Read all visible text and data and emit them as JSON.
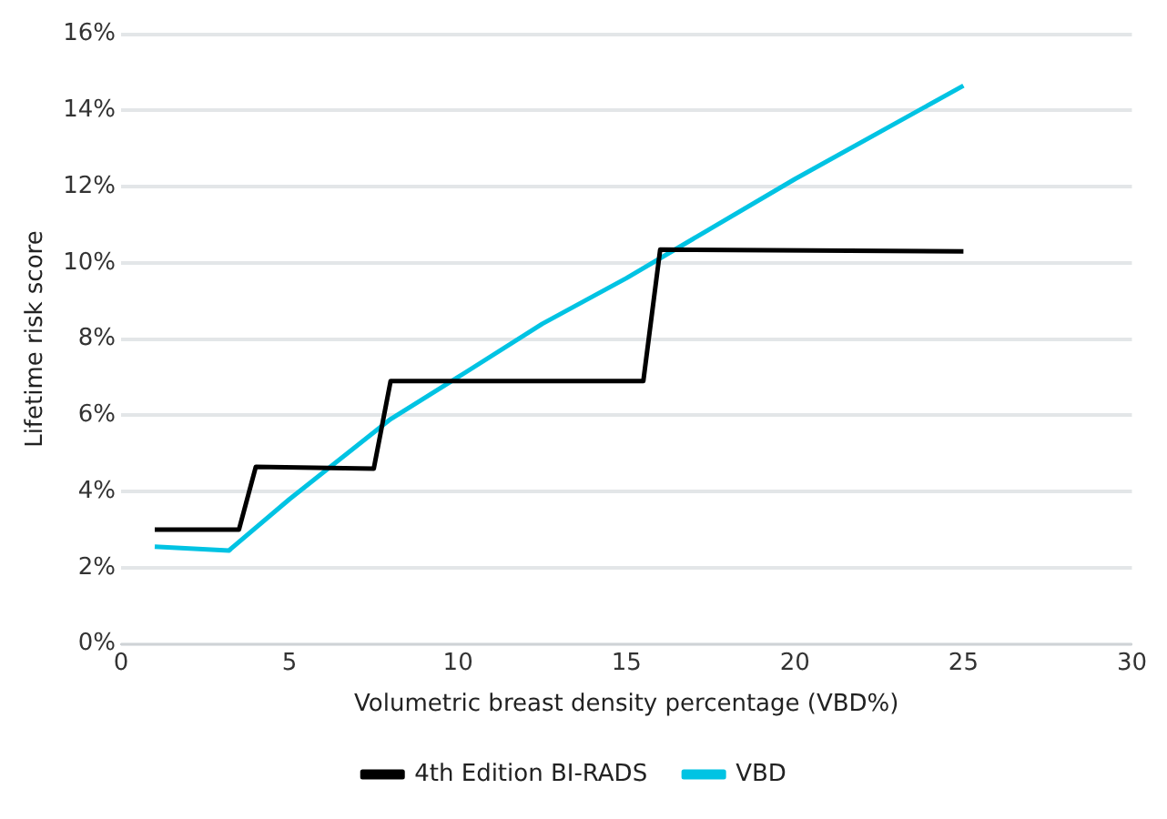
{
  "chart_data": {
    "type": "line",
    "xlabel": "Volumetric breast density percentage (VBD%)",
    "ylabel": "Lifetime risk score",
    "series": [
      {
        "name": "4th Edition BI-RADS",
        "color": "#000000",
        "x": [
          1,
          3.5,
          4,
          7.5,
          8,
          15.5,
          16,
          25
        ],
        "values": [
          3.0,
          3.0,
          4.65,
          4.6,
          6.9,
          6.9,
          10.35,
          10.3
        ]
      },
      {
        "name": "VBD",
        "color": "#00c3e3",
        "x": [
          1,
          3.2,
          5,
          8,
          10,
          12.5,
          15,
          17.5,
          20,
          25
        ],
        "values": [
          2.55,
          2.45,
          3.8,
          5.9,
          7.0,
          8.4,
          9.6,
          10.9,
          12.2,
          14.65
        ]
      }
    ],
    "xlim": [
      0,
      30
    ],
    "xticks": [
      0,
      5,
      10,
      15,
      20,
      25,
      30
    ],
    "ylim": [
      0,
      16
    ],
    "yticks": [
      {
        "value": 0,
        "label": "0%"
      },
      {
        "value": 2,
        "label": "2%"
      },
      {
        "value": 4,
        "label": "4%"
      },
      {
        "value": 6,
        "label": "6%"
      },
      {
        "value": 8,
        "label": "8%"
      },
      {
        "value": 10,
        "label": "10%"
      },
      {
        "value": 12,
        "label": "12%"
      },
      {
        "value": 14,
        "label": "14%"
      },
      {
        "value": 16,
        "label": "16%"
      }
    ],
    "grid": "y",
    "legend": "bottom",
    "marker": "none",
    "line_style": "solid"
  }
}
